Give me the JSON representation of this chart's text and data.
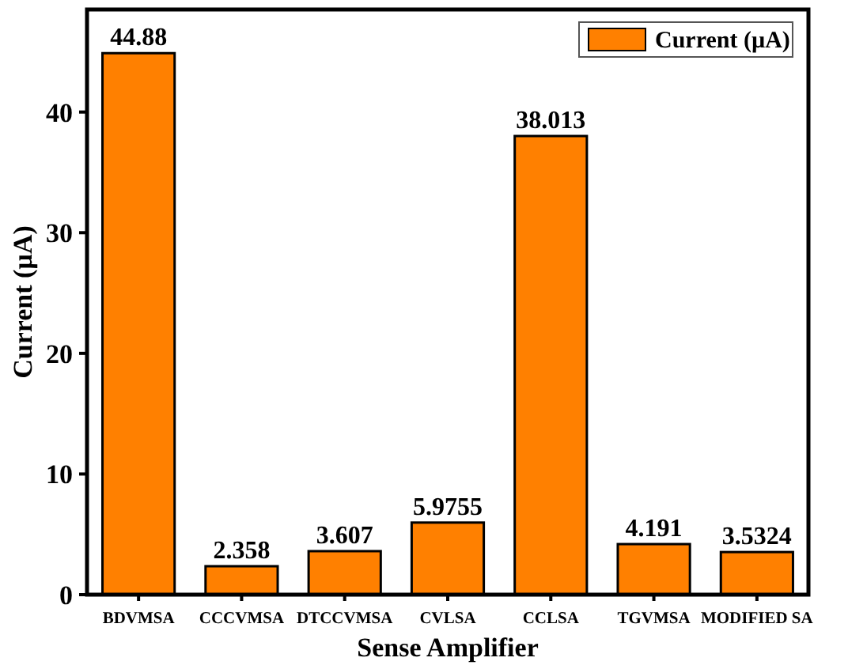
{
  "chart_data": {
    "type": "bar",
    "xlabel": "Sense Amplifier",
    "ylabel": "Current (µA)",
    "categories": [
      "BDVMSA",
      "CCCVMSA",
      "DTCCVMSA",
      "CVLSA",
      "CCLSA",
      "TGVMSA",
      "MODIFIED SA"
    ],
    "series": [
      {
        "name": "Current (µA)",
        "color": "#ff8000",
        "values": [
          44.88,
          2.358,
          3.607,
          5.9755,
          38.013,
          4.191,
          3.5324
        ]
      }
    ],
    "ylim": [
      0,
      48.5
    ],
    "yticks": [
      0,
      10,
      20,
      30,
      40
    ],
    "data_labels": true,
    "legend": "top right",
    "grid": false
  }
}
